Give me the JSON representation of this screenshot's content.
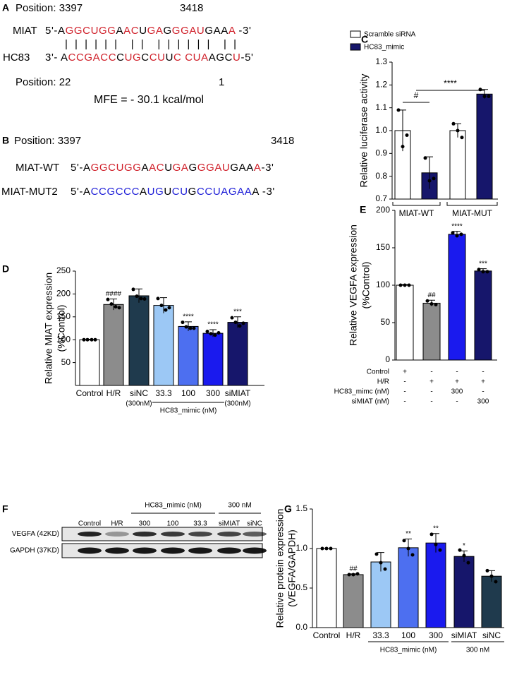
{
  "panel_a": {
    "label": "A",
    "position_start": "Position: 3397",
    "position_end": "3418",
    "rows": [
      {
        "name": "MIAT",
        "segments": [
          {
            "text": "5'-A",
            "color": "#000000"
          },
          {
            "text": "GGCUGG",
            "color": "#d0202a"
          },
          {
            "text": "A",
            "color": "#000000"
          },
          {
            "text": "AC",
            "color": "#d0202a"
          },
          {
            "text": "U",
            "color": "#000000"
          },
          {
            "text": "GA",
            "color": "#d0202a"
          },
          {
            "text": "G",
            "color": "#000000"
          },
          {
            "text": "GGAU",
            "color": "#d0202a"
          },
          {
            "text": "GAA",
            "color": "#000000"
          },
          {
            "text": "A",
            "color": "#d0202a"
          },
          {
            "text": " -3'",
            "color": "#000000"
          }
        ]
      },
      {
        "name": "HC83",
        "segments": [
          {
            "text": "3'- A",
            "color": "#000000"
          },
          {
            "text": "CCGACC",
            "color": "#d0202a"
          },
          {
            "text": "C",
            "color": "#000000"
          },
          {
            "text": "UG",
            "color": "#d0202a"
          },
          {
            "text": "C",
            "color": "#000000"
          },
          {
            "text": "CU",
            "color": "#d0202a"
          },
          {
            "text": "U",
            "color": "#000000"
          },
          {
            "text": "C CUA",
            "color": "#d0202a"
          },
          {
            "text": "AGC",
            "color": "#000000"
          },
          {
            "text": "U",
            "color": "#d0202a"
          },
          {
            "text": "-5'",
            "color": "#000000"
          }
        ]
      }
    ],
    "pairing": "|  |  |  |  |  |    |  |    |  |  |  |  |  |    |  |",
    "position_start2": "Position: 22",
    "position_end2": "1",
    "mfe": "MFE = - 30.1 kcal/mol"
  },
  "panel_b": {
    "label": "B",
    "position_start": "Position: 3397",
    "position_end": "3418",
    "rows": [
      {
        "name": "MIAT-WT",
        "segments": [
          {
            "text": "5'-A",
            "color": "#000000"
          },
          {
            "text": "GGCUGG",
            "color": "#d0202a"
          },
          {
            "text": "A",
            "color": "#000000"
          },
          {
            "text": "AC",
            "color": "#d0202a"
          },
          {
            "text": "U",
            "color": "#000000"
          },
          {
            "text": "GA",
            "color": "#d0202a"
          },
          {
            "text": "G",
            "color": "#000000"
          },
          {
            "text": "GGAU",
            "color": "#d0202a"
          },
          {
            "text": "GAA",
            "color": "#000000"
          },
          {
            "text": "A",
            "color": "#d0202a"
          },
          {
            "text": "-3'",
            "color": "#000000"
          }
        ]
      },
      {
        "name": "MIAT-MUT2",
        "segments": [
          {
            "text": "5'-A",
            "color": "#000000"
          },
          {
            "text": "CCGCCC",
            "color": "#2020d8"
          },
          {
            "text": "A",
            "color": "#000000"
          },
          {
            "text": "UG",
            "color": "#2020d8"
          },
          {
            "text": "U",
            "color": "#000000"
          },
          {
            "text": "CU",
            "color": "#2020d8"
          },
          {
            "text": "G",
            "color": "#000000"
          },
          {
            "text": "CCUAGAA",
            "color": "#2020d8"
          },
          {
            "text": "A -3'",
            "color": "#000000"
          }
        ]
      }
    ]
  },
  "panel_f": {
    "label": "F",
    "lanes": [
      "Control",
      "H/R",
      "300",
      "100",
      "33.3",
      "siMIAT",
      "siNC"
    ],
    "groups": [
      "HC83_mimic (nM)",
      "300 nM"
    ],
    "rows": [
      "VEGFA (42KD)",
      "GAPDH (37KD)"
    ]
  },
  "chart_data": [
    {
      "type": "grouped-bar",
      "panel_label": "C",
      "ylabel": "Relative luciferase activity",
      "categories": [
        "MIAT-WT",
        "MIAT-MUT"
      ],
      "series": [
        {
          "name": "Scramble siRNA",
          "color": "#ffffff",
          "values": [
            1.0,
            1.0
          ],
          "errors": [
            0.09,
            0.03
          ],
          "points": [
            [
              1.09,
              0.93,
              0.98
            ],
            [
              1.03,
              1.0,
              0.97
            ]
          ]
        },
        {
          "name": "HC83_mimic",
          "color": "#16166b",
          "values": [
            0.815,
            1.16
          ],
          "errors": [
            0.07,
            0.02
          ],
          "points": [
            [
              0.88,
              0.78,
              0.79
            ],
            [
              1.18,
              1.15,
              1.15
            ]
          ]
        }
      ],
      "ylim": [
        0.7,
        1.3
      ],
      "yticks": [
        0.7,
        0.8,
        0.9,
        {
          "value": 1,
          "label": "1.0"
        },
        1.1,
        1.2,
        1.3
      ],
      "comparisons": [
        "#",
        "****"
      ],
      "legend": "top-left"
    },
    {
      "type": "bar",
      "panel_label": "D",
      "ylabel": [
        "Relative MIAT expression",
        "(%Control)"
      ],
      "categories": [
        "Control",
        "H/R",
        "siNC",
        "33.3",
        "100",
        "300",
        "siMIAT"
      ],
      "category_notes": [
        null,
        null,
        "(300nM)",
        null,
        null,
        null,
        "(300nM)"
      ],
      "groups": [
        "HC83_mimic (nM)"
      ],
      "values": [
        100,
        177,
        196,
        175,
        129,
        114,
        138
      ],
      "errors": [
        1,
        12,
        15,
        17,
        10,
        8,
        12
      ],
      "colors": [
        "#ffffff",
        "#8c8c8c",
        "#1f3a4d",
        "#9cc8f5",
        "#4d6ff0",
        "#1a1aee",
        "#16166b"
      ],
      "points": [
        [
          100,
          100,
          100,
          100
        ],
        [
          188,
          178,
          172,
          170
        ],
        [
          210,
          195,
          190,
          189
        ],
        [
          190,
          175,
          165,
          170
        ],
        [
          138,
          128,
          125,
          125
        ],
        [
          118,
          113,
          110,
          115
        ],
        [
          148,
          138,
          130,
          136
        ]
      ],
      "annotations": [
        null,
        "####",
        null,
        null,
        "****",
        "****",
        "***"
      ],
      "ylim": [
        0,
        250
      ],
      "yticks": [
        50,
        100,
        150,
        200,
        250
      ]
    },
    {
      "type": "bar",
      "panel_label": "E",
      "ylabel": [
        "Relative VEGFA expression",
        "(%Control)"
      ],
      "conditions": [
        {
          "label": "Control",
          "cells": [
            "+",
            "-",
            "-",
            "-"
          ]
        },
        {
          "label": "H/R",
          "cells": [
            "-",
            "+",
            "+",
            "+"
          ]
        },
        {
          "label": "HC83_mimc (nM)",
          "cells": [
            "-",
            "-",
            "300",
            "-"
          ]
        },
        {
          "label": "siMIAT (nM)",
          "cells": [
            "-",
            "-",
            "-",
            "300"
          ]
        }
      ],
      "values": [
        100,
        76,
        168,
        119
      ],
      "errors": [
        1,
        4,
        4,
        3
      ],
      "colors": [
        "#ffffff",
        "#8c8c8c",
        "#1a1aee",
        "#16166b"
      ],
      "points": [
        [
          100,
          100,
          100
        ],
        [
          79,
          75,
          74
        ],
        [
          170,
          166,
          168
        ],
        [
          121,
          118,
          118
        ]
      ],
      "annotations": [
        null,
        "##",
        "****",
        "***"
      ],
      "ylim": [
        0,
        200
      ],
      "yticks": [
        0,
        50,
        100,
        150,
        200
      ]
    },
    {
      "type": "bar",
      "panel_label": "G",
      "ylabel": [
        "Relative protein expression",
        "(VEGFA/GAPDH)"
      ],
      "categories": [
        "Control",
        "H/R",
        "33.3",
        "100",
        "300",
        "siMIAT",
        "siNC"
      ],
      "groups": [
        "HC83_mimic (nM)",
        "300 nM"
      ],
      "values": [
        1.0,
        0.67,
        0.83,
        1.01,
        1.07,
        0.9,
        0.65
      ],
      "errors": [
        0,
        0.01,
        0.12,
        0.11,
        0.12,
        0.07,
        0.07
      ],
      "colors": [
        "#ffffff",
        "#8c8c8c",
        "#9cc8f5",
        "#4d6ff0",
        "#1a1aee",
        "#16166b",
        "#1f3a4d"
      ],
      "points": [
        [
          1,
          1,
          1
        ],
        [
          0.67,
          0.67,
          0.68
        ],
        [
          0.93,
          0.82,
          0.74
        ],
        [
          1.1,
          1.0,
          0.92
        ],
        [
          1.18,
          1.05,
          0.98
        ],
        [
          0.98,
          0.91,
          0.82
        ],
        [
          0.72,
          0.65,
          0.58
        ]
      ],
      "annotations": [
        null,
        "##",
        null,
        "**",
        "**",
        "*",
        null
      ],
      "ylim": [
        0,
        1.5
      ],
      "yticks": [
        {
          "value": 0,
          "label": "0.0"
        },
        0.5,
        {
          "value": 1,
          "label": "1.0"
        },
        1.5
      ]
    }
  ]
}
